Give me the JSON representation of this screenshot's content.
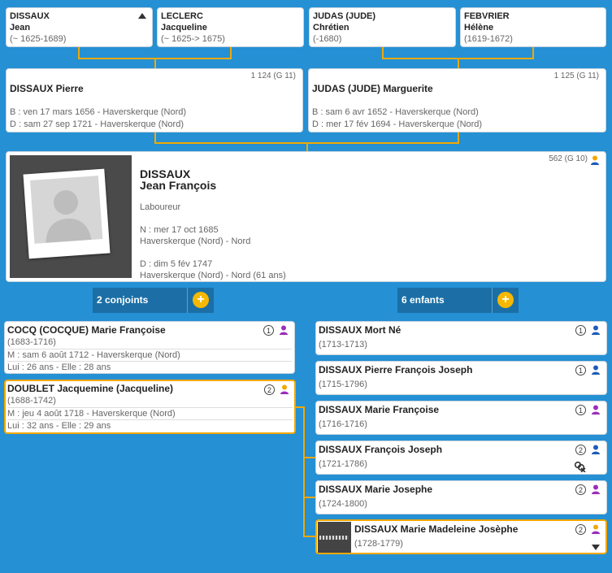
{
  "grandparents": [
    {
      "surname": "DISSAUX",
      "given": "Jean",
      "dates": "(~ 1625-1689)"
    },
    {
      "surname": "LECLERC",
      "given": "Jacqueline",
      "dates": "(~ 1625-> 1675)"
    },
    {
      "surname": "JUDAS (JUDE)",
      "given": "Chrétien",
      "dates": "(-1680)"
    },
    {
      "surname": "FEBVRIER",
      "given": "Hélène",
      "dates": "(1619-1672)"
    }
  ],
  "parents": [
    {
      "name": "DISSAUX Pierre",
      "id": "1 124 (G 11)",
      "birth": "B : ven 17 mars 1656 - Haverskerque (Nord)",
      "death": "D : sam 27 sep 1721 - Haverskerque (Nord)"
    },
    {
      "name": "JUDAS (JUDE) Marguerite",
      "id": "1 125 (G 11)",
      "birth": "B : sam 6 avr 1652 - Haverskerque (Nord)",
      "death": "D : mer 17 fév 1694 - Haverskerque (Nord)"
    }
  ],
  "main": {
    "surname": "DISSAUX",
    "given": "Jean François",
    "id": "562 (G 10)",
    "occupation": "Laboureur",
    "birth": "N : mer 17 oct 1685",
    "birth_place": "Haverskerque (Nord) - Nord",
    "death": "D : dim 5 fév 1747",
    "death_place": "Haverskerque (Nord) - Nord (61 ans)"
  },
  "spouses_label": "2 conjoints",
  "children_label": "6 enfants",
  "plus": "+",
  "spouses": [
    {
      "name": "COCQ (COCQUE) Marie Françoise",
      "dates": "(1683-1716)",
      "num": "1",
      "marriage": "M : sam 6 août 1712 - Haverskerque (Nord)",
      "ages": "Lui : 26 ans - Elle : 28 ans"
    },
    {
      "name": "DOUBLET Jacquemine (Jacqueline)",
      "dates": "(1688-1742)",
      "num": "2",
      "marriage": "M : jeu 4 août 1718 - Haverskerque (Nord)",
      "ages": "Lui : 32 ans - Elle : 29 ans"
    }
  ],
  "children": [
    {
      "name": "DISSAUX Mort Né",
      "dates": "(1713-1713)",
      "num": "1",
      "sex": "m"
    },
    {
      "name": "DISSAUX Pierre François Joseph",
      "dates": "(1715-1796)",
      "num": "1",
      "sex": "m"
    },
    {
      "name": "DISSAUX Marie Françoise",
      "dates": "(1716-1716)",
      "num": "1",
      "sex": "f"
    },
    {
      "name": "DISSAUX François Joseph",
      "dates": "(1721-1786)",
      "num": "2",
      "sex": "m"
    },
    {
      "name": "DISSAUX Marie Josephe",
      "dates": "(1724-1800)",
      "num": "2",
      "sex": "f"
    },
    {
      "name": "DISSAUX Marie Madeleine Josèphe",
      "dates": "(1728-1779)",
      "num": "2",
      "sex": "f"
    }
  ]
}
